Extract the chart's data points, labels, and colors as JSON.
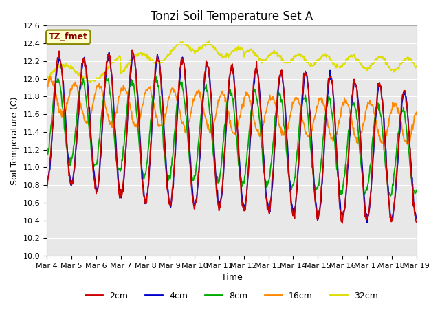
{
  "title": "Tonzi Soil Temperature Set A",
  "xlabel": "Time",
  "ylabel": "Soil Temperature (C)",
  "ylim": [
    10.0,
    12.6
  ],
  "yticks": [
    10.0,
    10.2,
    10.4,
    10.6,
    10.8,
    11.0,
    11.2,
    11.4,
    11.6,
    11.8,
    12.0,
    12.2,
    12.4,
    12.6
  ],
  "colors": {
    "2cm": "#cc0000",
    "4cm": "#0000cc",
    "8cm": "#00aa00",
    "16cm": "#ff8800",
    "32cm": "#dddd00"
  },
  "legend_label": "TZ_fmet",
  "legend_label_color": "#880000",
  "legend_box_color": "#ffffcc",
  "legend_box_edge": "#888800",
  "background_color": "#e8e8e8",
  "n_days": 15,
  "points_per_day": 48,
  "title_fontsize": 12,
  "axis_label_fontsize": 9,
  "tick_fontsize": 8
}
